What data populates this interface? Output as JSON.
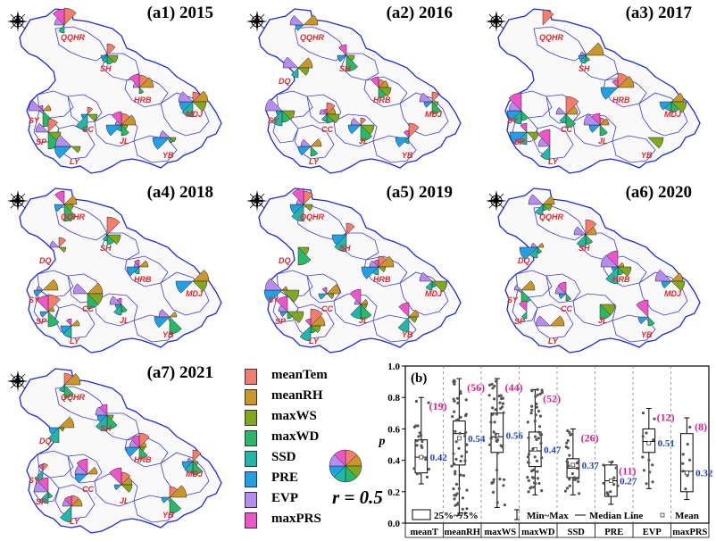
{
  "panels": [
    {
      "title": "(a1) 2015",
      "labels": [
        "QQHR",
        "SH",
        "HRB",
        "MDJ",
        "SY",
        "CC",
        "JL",
        "SP",
        "LY",
        "YB"
      ]
    },
    {
      "title": "(a2) 2016",
      "labels": [
        "QQHR",
        "SH",
        "DQ",
        "HRB",
        "MDJ",
        "SY",
        "CC",
        "JL",
        "LY",
        "YB"
      ]
    },
    {
      "title": "(a3) 2017",
      "labels": [
        "QQHR",
        "SH",
        "HRB",
        "MDJ",
        "SY",
        "CC",
        "JL",
        "SP",
        "LY",
        "YB"
      ]
    },
    {
      "title": "(a4) 2018",
      "labels": [
        "QQHR",
        "SH",
        "DQ",
        "HRB",
        "MDJ",
        "SY",
        "CC",
        "JL",
        "SP",
        "LY",
        "YB"
      ]
    },
    {
      "title": "(a5) 2019",
      "labels": [
        "QQHR",
        "SH",
        "DQ",
        "HRB",
        "MDJ",
        "SY",
        "CC",
        "JL",
        "SP",
        "LY",
        "YB"
      ]
    },
    {
      "title": "(a6) 2020",
      "labels": [
        "QQHR",
        "SH",
        "DQ",
        "HRB",
        "MDJ",
        "SY",
        "CC",
        "JL",
        "SP",
        "LY",
        "YB"
      ]
    },
    {
      "title": "(a7)  2021",
      "labels": [
        "QQHR",
        "SH",
        "DQ",
        "HRB",
        "MDJ",
        "SY",
        "CC",
        "JL",
        "SP",
        "LY",
        "YB"
      ]
    }
  ],
  "legend": {
    "items": [
      {
        "label": "meanTem",
        "color": "#f47c6c"
      },
      {
        "label": "meanRH",
        "color": "#c8962a"
      },
      {
        "label": "maxWS",
        "color": "#7fa81e"
      },
      {
        "label": "maxWD",
        "color": "#27b869"
      },
      {
        "label": "SSD",
        "color": "#22b6a6"
      },
      {
        "label": "PRE",
        "color": "#22a0e6"
      },
      {
        "label": "EVP",
        "color": "#b58cf0"
      },
      {
        "label": "maxPRS",
        "color": "#ee55c8"
      }
    ],
    "scale_label": "r = 0.5"
  },
  "boxplot": {
    "title": "(b)",
    "ylabel": "p",
    "yticks": [
      "0.0",
      "0.2",
      "0.4",
      "0.6",
      "0.8",
      "1.0"
    ],
    "ylim": [
      0,
      1.0
    ],
    "categories": [
      {
        "name": "meanT",
        "count": "(19)",
        "mean_label": "0.42",
        "min": 0.25,
        "q1": 0.32,
        "median": 0.42,
        "q3": 0.53,
        "max": 0.8,
        "mean": 0.42
      },
      {
        "name": "meanRH",
        "count": "(56)",
        "mean_label": "0.54",
        "min": 0.05,
        "q1": 0.37,
        "median": 0.57,
        "q3": 0.65,
        "max": 0.92,
        "mean": 0.54
      },
      {
        "name": "maxWS",
        "count": "(44)",
        "mean_label": "0.56",
        "min": 0.1,
        "q1": 0.45,
        "median": 0.55,
        "q3": 0.7,
        "max": 0.92,
        "mean": 0.56
      },
      {
        "name": "maxWD",
        "count": "(52)",
        "mean_label": "0.47",
        "min": 0.18,
        "q1": 0.36,
        "median": 0.46,
        "q3": 0.58,
        "max": 0.85,
        "mean": 0.47
      },
      {
        "name": "SSD",
        "count": "(26)",
        "mean_label": "0.37",
        "min": 0.18,
        "q1": 0.29,
        "median": 0.35,
        "q3": 0.41,
        "max": 0.6,
        "mean": 0.37
      },
      {
        "name": "PRE",
        "count": "(11)",
        "mean_label": "0.27",
        "min": 0.12,
        "q1": 0.17,
        "median": 0.27,
        "q3": 0.37,
        "max": 0.39,
        "mean": 0.27
      },
      {
        "name": "EVP",
        "count": "(12)",
        "mean_label": "0.51",
        "min": 0.22,
        "q1": 0.45,
        "median": 0.52,
        "q3": 0.6,
        "max": 0.73,
        "mean": 0.51
      },
      {
        "name": "maxPRS",
        "count": "(8)",
        "mean_label": "0.32",
        "min": 0.15,
        "q1": 0.2,
        "median": 0.33,
        "q3": 0.57,
        "max": 0.67,
        "mean": 0.32
      }
    ],
    "legend": {
      "box": "25%~75%",
      "range": "Min~Max",
      "median": "Median Line",
      "mean": "Mean"
    },
    "count_color": "#e0208c",
    "mean_color": "#1f3fbf"
  }
}
